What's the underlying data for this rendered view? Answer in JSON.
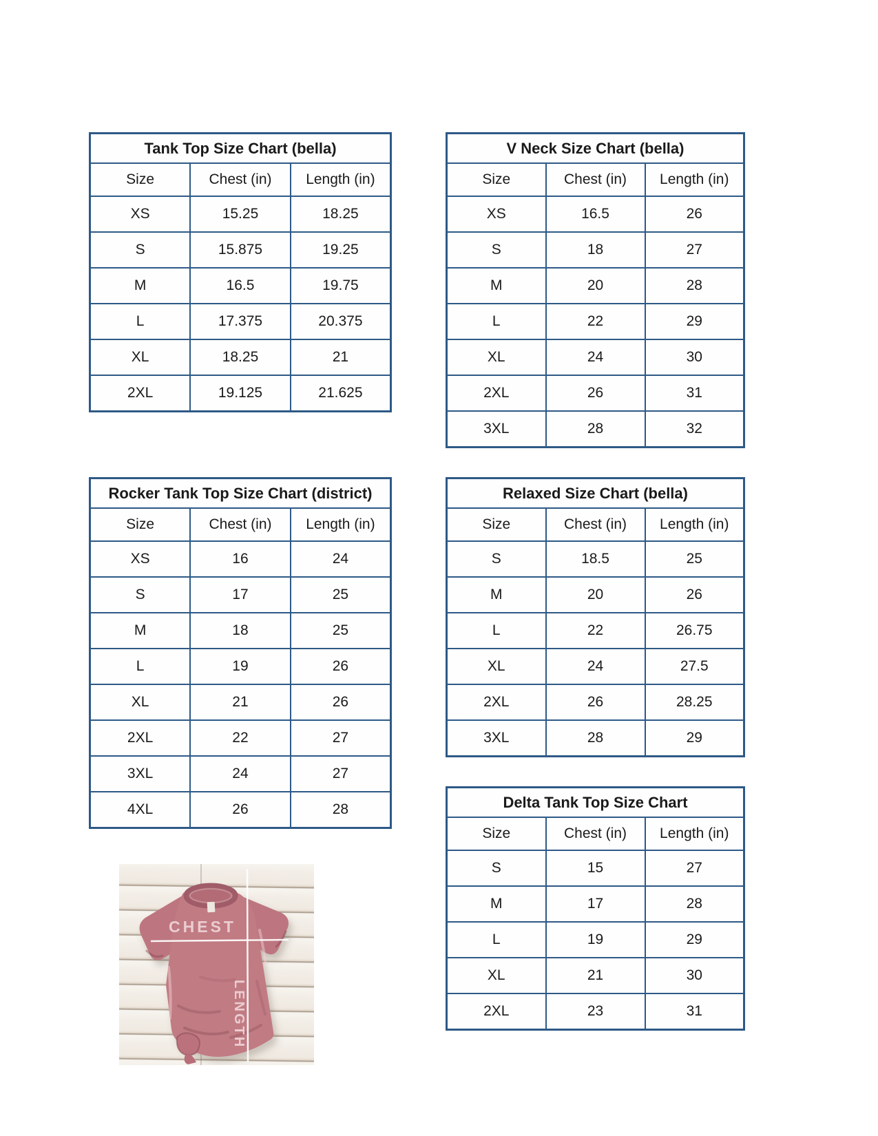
{
  "document": {
    "kind": "t-shirt size chart sheet",
    "background": "#ffffff"
  },
  "style": {
    "table_border_color": "#2d5986",
    "table_background": "#fefefe",
    "text_color": "#1a1a1a",
    "shirt_color": "#c17b83",
    "wood_color": "#f3efe9",
    "measure_line_color": "#ffffff",
    "measure_label_color": "#eed2d6"
  },
  "tables": [
    {
      "id": "tank-top",
      "title": "Tank Top Size Chart (bella)",
      "headers": [
        "Size",
        "Chest (in)",
        "Length (in)"
      ],
      "rows": [
        [
          "XS",
          "15.25",
          "18.25"
        ],
        [
          "S",
          "15.875",
          "19.25"
        ],
        [
          "M",
          "16.5",
          "19.75"
        ],
        [
          "L",
          "17.375",
          "20.375"
        ],
        [
          "XL",
          "18.25",
          "21"
        ],
        [
          "2XL",
          "19.125",
          "21.625"
        ]
      ]
    },
    {
      "id": "v-neck",
      "title": "V Neck Size Chart (bella)",
      "headers": [
        "Size",
        "Chest (in)",
        "Length (in)"
      ],
      "rows": [
        [
          "XS",
          "16.5",
          "26"
        ],
        [
          "S",
          "18",
          "27"
        ],
        [
          "M",
          "20",
          "28"
        ],
        [
          "L",
          "22",
          "29"
        ],
        [
          "XL",
          "24",
          "30"
        ],
        [
          "2XL",
          "26",
          "31"
        ],
        [
          "3XL",
          "28",
          "32"
        ]
      ]
    },
    {
      "id": "rocker-tank-top",
      "title": "Rocker Tank Top Size Chart (district)",
      "headers": [
        "Size",
        "Chest (in)",
        "Length (in)"
      ],
      "rows": [
        [
          "XS",
          "16",
          "24"
        ],
        [
          "S",
          "17",
          "25"
        ],
        [
          "M",
          "18",
          "25"
        ],
        [
          "L",
          "19",
          "26"
        ],
        [
          "XL",
          "21",
          "26"
        ],
        [
          "2XL",
          "22",
          "27"
        ],
        [
          "3XL",
          "24",
          "27"
        ],
        [
          "4XL",
          "26",
          "28"
        ]
      ]
    },
    {
      "id": "relaxed",
      "title": "Relaxed Size Chart (bella)",
      "headers": [
        "Size",
        "Chest (in)",
        "Length (in)"
      ],
      "rows": [
        [
          "S",
          "18.5",
          "25"
        ],
        [
          "M",
          "20",
          "26"
        ],
        [
          "L",
          "22",
          "26.75"
        ],
        [
          "XL",
          "24",
          "27.5"
        ],
        [
          "2XL",
          "26",
          "28.25"
        ],
        [
          "3XL",
          "28",
          "29"
        ]
      ]
    },
    {
      "id": "delta-tank-top",
      "title": "Delta Tank Top Size Chart",
      "headers": [
        "Size",
        "Chest (in)",
        "Length (in)"
      ],
      "rows": [
        [
          "S",
          "15",
          "27"
        ],
        [
          "M",
          "17",
          "28"
        ],
        [
          "L",
          "19",
          "29"
        ],
        [
          "XL",
          "21",
          "30"
        ],
        [
          "2XL",
          "23",
          "31"
        ]
      ]
    }
  ],
  "photo": {
    "description": "mauve t-shirt flat lay on white wood planks with measurement guides",
    "chest_label": "CHEST",
    "length_label": "LENGTH"
  }
}
